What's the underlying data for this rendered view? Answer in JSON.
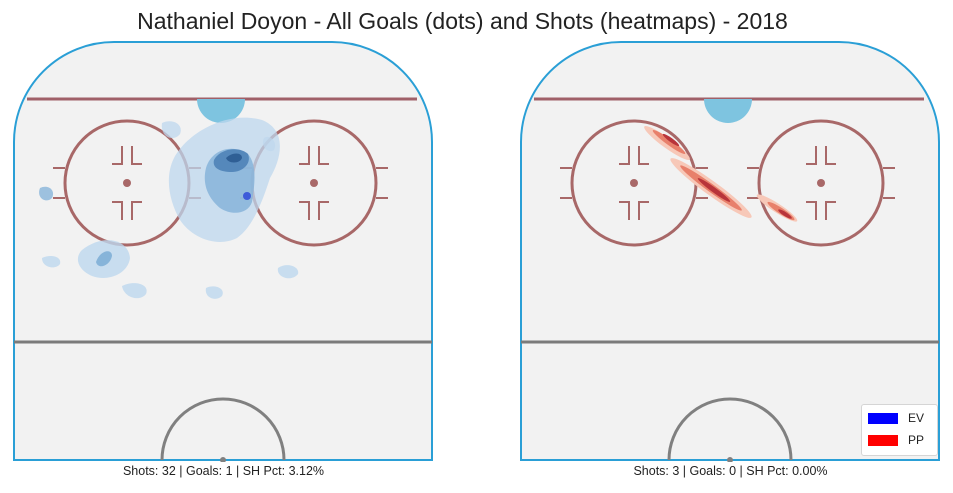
{
  "chart_data": {
    "title": "Nathaniel Doyon - All Goals (dots) and Shots (heatmaps) - 2018",
    "type": "heatmap",
    "legend": {
      "placement": "bottom-right",
      "entries": [
        {
          "label": "EV",
          "color": "#0000ff"
        },
        {
          "label": "PP",
          "color": "#ff0000"
        }
      ]
    },
    "panels": [
      {
        "name": "EV",
        "caption": "Shots: 32 | Goals: 1 | SH Pct: 3.12%",
        "shots": 32,
        "goals": 1,
        "sh_pct": "3.12%",
        "colors": {
          "light": "#bdd7ee",
          "mid": "#87b4d9",
          "dark": "#4a7fb5",
          "dot": "#3d5bd9"
        }
      },
      {
        "name": "PP",
        "caption": "Shots: 3 | Goals: 0 | SH Pct: 0.00%",
        "shots": 3,
        "goals": 0,
        "sh_pct": "0.00%",
        "colors": {
          "light": "#f7c8b8",
          "mid": "#e8806b",
          "dark": "#b8343a"
        }
      }
    ]
  }
}
